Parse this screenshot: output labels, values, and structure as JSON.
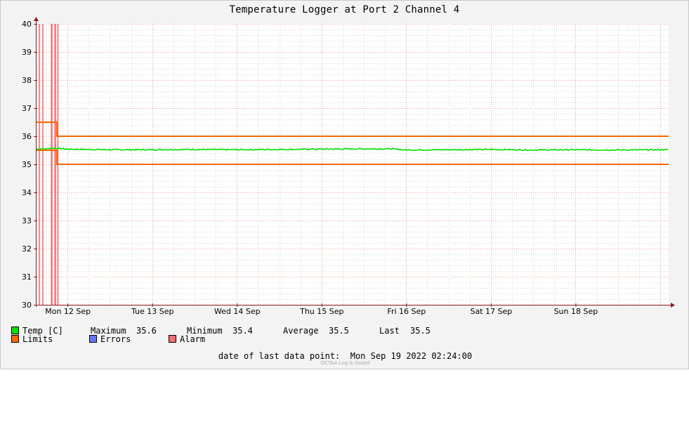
{
  "chart_data": {
    "type": "line",
    "title": "Temperature Logger at Port 2 Channel 4",
    "ylim": [
      30,
      40
    ],
    "yticks": [
      "30",
      "31",
      "32",
      "33",
      "34",
      "35",
      "36",
      "37",
      "38",
      "39",
      "40"
    ],
    "x_range": [
      "2022-09-11 15:00",
      "2022-09-19 02:24"
    ],
    "xticks": [
      {
        "label": "Mon 12 Sep",
        "t": "2022-09-12 00:00"
      },
      {
        "label": "Tue 13 Sep",
        "t": "2022-09-13 00:00"
      },
      {
        "label": "Wed 14 Sep",
        "t": "2022-09-14 00:00"
      },
      {
        "label": "Thu 15 Sep",
        "t": "2022-09-15 00:00"
      },
      {
        "label": "Fri 16 Sep",
        "t": "2022-09-16 00:00"
      },
      {
        "label": "Sat 17 Sep",
        "t": "2022-09-17 00:00"
      },
      {
        "label": "Sun 18 Sep",
        "t": "2022-09-18 00:00"
      }
    ],
    "grid": true,
    "series": [
      {
        "name": "Temp [C]",
        "color": "#00e000",
        "points": [
          [
            "2022-09-11 15:00",
            35.55
          ],
          [
            "2022-09-11 18:00",
            35.55
          ],
          [
            "2022-09-11 20:00",
            35.58
          ],
          [
            "2022-09-12 00:00",
            35.54
          ],
          [
            "2022-09-12 12:00",
            35.52
          ],
          [
            "2022-09-13 00:00",
            35.52
          ],
          [
            "2022-09-13 12:00",
            35.53
          ],
          [
            "2022-09-14 00:00",
            35.52
          ],
          [
            "2022-09-14 12:00",
            35.53
          ],
          [
            "2022-09-15 00:00",
            35.54
          ],
          [
            "2022-09-15 12:00",
            35.55
          ],
          [
            "2022-09-15 20:00",
            35.55
          ],
          [
            "2022-09-16 00:00",
            35.51
          ],
          [
            "2022-09-16 12:00",
            35.52
          ],
          [
            "2022-09-17 00:00",
            35.53
          ],
          [
            "2022-09-17 12:00",
            35.51
          ],
          [
            "2022-09-18 00:00",
            35.52
          ],
          [
            "2022-09-18 12:00",
            35.51
          ],
          [
            "2022-09-19 02:24",
            35.52
          ]
        ]
      },
      {
        "name": "Limits",
        "color": "#ff6600",
        "upper": [
          [
            "2022-09-11 15:00",
            36.5
          ],
          [
            "2022-09-11 21:00",
            36.5
          ],
          [
            "2022-09-11 21:00",
            36.0
          ],
          [
            "2022-09-19 02:24",
            36.0
          ]
        ],
        "lower": [
          [
            "2022-09-11 15:00",
            35.5
          ],
          [
            "2022-09-11 21:00",
            35.5
          ],
          [
            "2022-09-11 21:00",
            35.0
          ],
          [
            "2022-09-19 02:24",
            35.0
          ]
        ]
      },
      {
        "name": "Errors",
        "color": "#6677ee",
        "events": []
      },
      {
        "name": "Alarm",
        "color": "#f07070",
        "events": [
          "2022-09-11 16:00",
          "2022-09-11 17:00",
          "2022-09-11 19:30",
          "2022-09-11 20:30",
          "2022-09-11 21:15"
        ]
      }
    ]
  },
  "legend": {
    "temp_label": "Temp [C]",
    "max_label": "Maximum",
    "max_value": "35.6",
    "min_label": "Minimum",
    "min_value": "35.4",
    "avg_label": "Average",
    "avg_value": "35.5",
    "last_label": "Last",
    "last_value": "35.5",
    "limits_label": "Limits",
    "errors_label": "Errors",
    "alarm_label": "Alarm"
  },
  "footer": {
    "last_point_label": "date of last data point:",
    "last_point_value": "Mon Sep 19 2022 02:24:00",
    "credit": "OCTAA Log & Guard"
  },
  "colors": {
    "temp": "#00e000",
    "limits": "#ff6600",
    "errors": "#6677ee",
    "alarm": "#f07070",
    "grid_major": "#f2a0a0",
    "grid_minor": "#d8d8d8",
    "axis": "#8b1a1a"
  }
}
